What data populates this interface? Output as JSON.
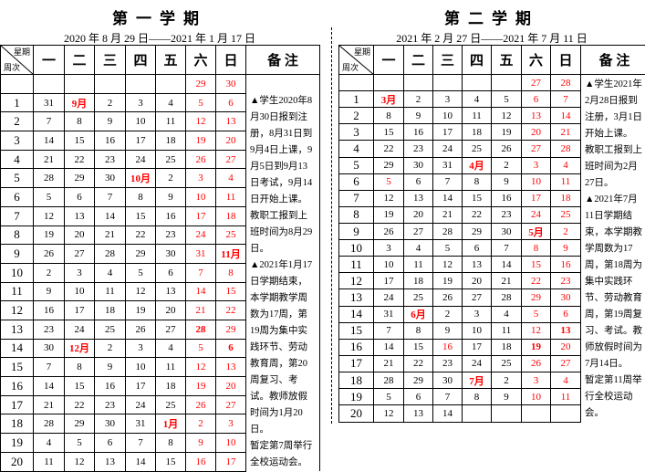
{
  "header_labels": {
    "weekday_corner": "星期",
    "week_corner": "周次",
    "days": [
      "一",
      "二",
      "三",
      "四",
      "五",
      "六",
      "日"
    ],
    "notes": "备 注"
  },
  "semester1": {
    "title": "第一学期",
    "range": "2020 年 8 月 29 日——2021 年 1 月 17 日",
    "rows": [
      {
        "week": "",
        "days": [
          "",
          "",
          "",
          "",
          "",
          "29",
          "30"
        ],
        "bold": [],
        "red": []
      },
      {
        "week": "1",
        "days": [
          "31",
          "9月",
          "2",
          "3",
          "4",
          "5",
          "6"
        ],
        "bold": [
          1
        ],
        "red": []
      },
      {
        "week": "2",
        "days": [
          "7",
          "8",
          "9",
          "10",
          "11",
          "12",
          "13"
        ],
        "bold": [],
        "red": []
      },
      {
        "week": "3",
        "days": [
          "14",
          "15",
          "16",
          "17",
          "18",
          "19",
          "20"
        ],
        "bold": [],
        "red": []
      },
      {
        "week": "4",
        "days": [
          "21",
          "22",
          "23",
          "24",
          "25",
          "26",
          "27"
        ],
        "bold": [],
        "red": []
      },
      {
        "week": "5",
        "days": [
          "28",
          "29",
          "30",
          "10月",
          "2",
          "3",
          "4"
        ],
        "bold": [
          3
        ],
        "red": []
      },
      {
        "week": "6",
        "days": [
          "5",
          "6",
          "7",
          "8",
          "9",
          "10",
          "11"
        ],
        "bold": [],
        "red": []
      },
      {
        "week": "7",
        "days": [
          "12",
          "13",
          "14",
          "15",
          "16",
          "17",
          "18"
        ],
        "bold": [],
        "red": []
      },
      {
        "week": "8",
        "days": [
          "19",
          "20",
          "21",
          "22",
          "23",
          "24",
          "25"
        ],
        "bold": [],
        "red": []
      },
      {
        "week": "9",
        "days": [
          "26",
          "27",
          "28",
          "29",
          "30",
          "31",
          "11月"
        ],
        "bold": [
          6
        ],
        "red": []
      },
      {
        "week": "10",
        "days": [
          "2",
          "3",
          "4",
          "5",
          "6",
          "7",
          "8"
        ],
        "bold": [],
        "red": []
      },
      {
        "week": "11",
        "days": [
          "9",
          "10",
          "11",
          "12",
          "13",
          "14",
          "15"
        ],
        "bold": [],
        "red": []
      },
      {
        "week": "12",
        "days": [
          "16",
          "17",
          "18",
          "19",
          "20",
          "21",
          "22"
        ],
        "bold": [],
        "red": []
      },
      {
        "week": "13",
        "days": [
          "23",
          "24",
          "25",
          "26",
          "27",
          "28",
          "29"
        ],
        "bold": [
          5
        ],
        "red": []
      },
      {
        "week": "14",
        "days": [
          "30",
          "12月",
          "2",
          "3",
          "4",
          "5",
          "6"
        ],
        "bold": [
          1,
          6
        ],
        "red": []
      },
      {
        "week": "15",
        "days": [
          "7",
          "8",
          "9",
          "10",
          "11",
          "12",
          "13"
        ],
        "bold": [],
        "red": []
      },
      {
        "week": "16",
        "days": [
          "14",
          "15",
          "16",
          "17",
          "18",
          "19",
          "20"
        ],
        "bold": [],
        "red": []
      },
      {
        "week": "17",
        "days": [
          "21",
          "22",
          "23",
          "24",
          "25",
          "26",
          "27"
        ],
        "bold": [],
        "red": []
      },
      {
        "week": "18",
        "days": [
          "28",
          "29",
          "30",
          "31",
          "1月",
          "2",
          "3"
        ],
        "bold": [
          4
        ],
        "red": []
      },
      {
        "week": "19",
        "days": [
          "4",
          "5",
          "6",
          "7",
          "8",
          "9",
          "10"
        ],
        "bold": [],
        "red": []
      },
      {
        "week": "20",
        "days": [
          "11",
          "12",
          "13",
          "14",
          "15",
          "16",
          "17"
        ],
        "bold": [],
        "red": []
      }
    ],
    "notes": [
      "▲学生2020年8月30日报到注册，8月31日到9月4日上课，9月5日到9月13日考试，9月14日开始上课。",
      "教职工报到上班时间为8月29日。",
      "▲2021年1月17日学期结束，本学期教学周数为17周，第19周为集中实践环节、劳动教育周，第20周复习、考试。教师放假时间为1月20日。",
      "暂定第7周举行全校运动会。"
    ]
  },
  "semester2": {
    "title": "第二学期",
    "range": "2021 年 2 月 27 日——2021 年 7 月 11 日",
    "rows": [
      {
        "week": "",
        "days": [
          "",
          "",
          "",
          "",
          "",
          "27",
          "28"
        ],
        "bold": [],
        "red": []
      },
      {
        "week": "1",
        "days": [
          "3月",
          "2",
          "3",
          "4",
          "5",
          "6",
          "7"
        ],
        "bold": [
          0
        ],
        "red": []
      },
      {
        "week": "2",
        "days": [
          "8",
          "9",
          "10",
          "11",
          "12",
          "13",
          "14"
        ],
        "bold": [],
        "red": []
      },
      {
        "week": "3",
        "days": [
          "15",
          "16",
          "17",
          "18",
          "19",
          "20",
          "21"
        ],
        "bold": [],
        "red": []
      },
      {
        "week": "4",
        "days": [
          "22",
          "23",
          "24",
          "25",
          "26",
          "27",
          "28"
        ],
        "bold": [],
        "red": []
      },
      {
        "week": "5",
        "days": [
          "29",
          "30",
          "31",
          "4月",
          "2",
          "3",
          "4"
        ],
        "bold": [
          3
        ],
        "red": []
      },
      {
        "week": "6",
        "days": [
          "5",
          "6",
          "7",
          "8",
          "9",
          "10",
          "11"
        ],
        "bold": [],
        "red": [
          0
        ]
      },
      {
        "week": "7",
        "days": [
          "12",
          "13",
          "14",
          "15",
          "16",
          "17",
          "18"
        ],
        "bold": [],
        "red": []
      },
      {
        "week": "8",
        "days": [
          "19",
          "20",
          "21",
          "22",
          "23",
          "24",
          "25"
        ],
        "bold": [],
        "red": []
      },
      {
        "week": "9",
        "days": [
          "26",
          "27",
          "28",
          "29",
          "30",
          "5月",
          "2"
        ],
        "bold": [
          5
        ],
        "red": []
      },
      {
        "week": "10",
        "days": [
          "3",
          "4",
          "5",
          "6",
          "7",
          "8",
          "9"
        ],
        "bold": [],
        "red": []
      },
      {
        "week": "11",
        "days": [
          "10",
          "11",
          "12",
          "13",
          "14",
          "15",
          "16"
        ],
        "bold": [],
        "red": []
      },
      {
        "week": "12",
        "days": [
          "17",
          "18",
          "19",
          "20",
          "21",
          "22",
          "23"
        ],
        "bold": [],
        "red": []
      },
      {
        "week": "13",
        "days": [
          "24",
          "25",
          "26",
          "27",
          "28",
          "29",
          "30"
        ],
        "bold": [],
        "red": []
      },
      {
        "week": "14",
        "days": [
          "31",
          "6月",
          "2",
          "3",
          "4",
          "5",
          "6"
        ],
        "bold": [
          1
        ],
        "red": []
      },
      {
        "week": "15",
        "days": [
          "7",
          "8",
          "9",
          "10",
          "11",
          "12",
          "13"
        ],
        "bold": [
          6
        ],
        "red": []
      },
      {
        "week": "16",
        "days": [
          "14",
          "15",
          "16",
          "17",
          "18",
          "19",
          "20"
        ],
        "bold": [
          5
        ],
        "red": [
          2
        ]
      },
      {
        "week": "17",
        "days": [
          "21",
          "22",
          "23",
          "24",
          "25",
          "26",
          "27"
        ],
        "bold": [],
        "red": []
      },
      {
        "week": "18",
        "days": [
          "28",
          "29",
          "30",
          "7月",
          "2",
          "3",
          "4"
        ],
        "bold": [
          3
        ],
        "red": []
      },
      {
        "week": "19",
        "days": [
          "5",
          "6",
          "7",
          "8",
          "9",
          "10",
          "11"
        ],
        "bold": [],
        "red": []
      },
      {
        "week": "20",
        "days": [
          "12",
          "13",
          "14",
          "",
          "",
          "",
          ""
        ],
        "bold": [],
        "red": []
      }
    ],
    "notes": [
      "▲学生2021年2月28日报到注册，3月1日开始上课。",
      "教职工报到上班时间为2月27日。",
      "▲2021年7月11日学期结束，本学期教学周数为17周，第18周为集中实践环节、劳动教育周，第19周复习、考试。教师放假时间为7月14日。",
      "暂定第11周举行全校运动会。"
    ]
  }
}
